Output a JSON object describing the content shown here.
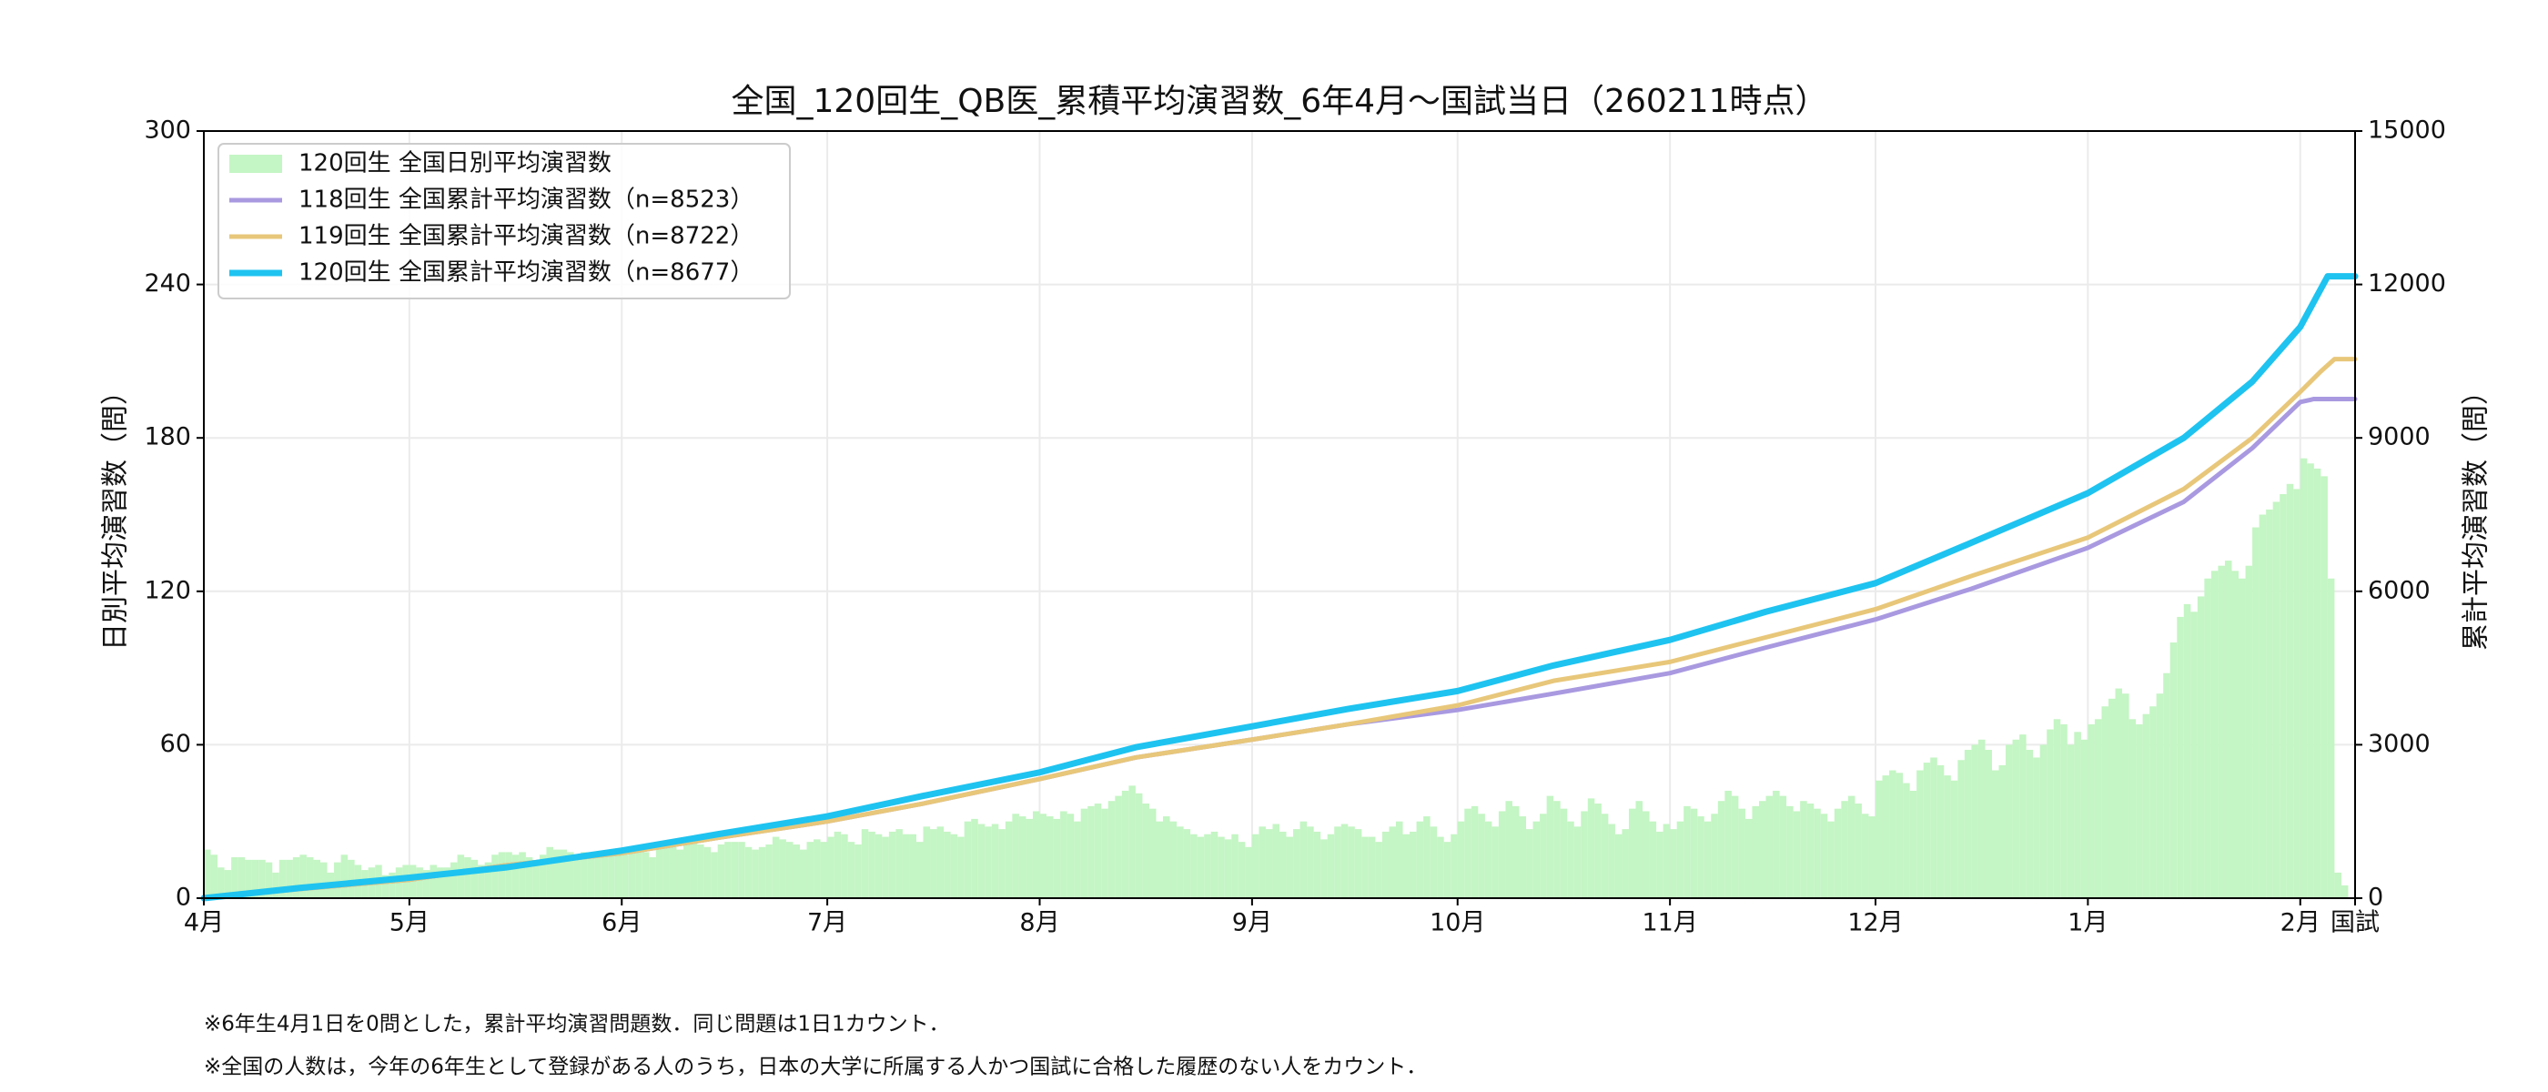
{
  "chart_data": {
    "type": "combo",
    "title": "全国_120回生_QB医_累積平均演習数_6年4月～国試当日（260211時点）",
    "y_label": "日別平均演習数（問）",
    "y2_label": "累計平均演習数（問）",
    "notes": [
      "※6年生4月1日を0問とした，累計平均演習問題数．同じ問題は1日1カウント．",
      "※全国の人数は，今年の6年生として登録がある人のうち，日本の大学に所属する人かつ国試に合格した履歴のない人をカウント．"
    ],
    "xlim": [
      0,
      314
    ],
    "xticks": [
      {
        "value": 0,
        "label": "4月"
      },
      {
        "value": 30,
        "label": "5月"
      },
      {
        "value": 61,
        "label": "6月"
      },
      {
        "value": 91,
        "label": "7月"
      },
      {
        "value": 122,
        "label": "8月"
      },
      {
        "value": 153,
        "label": "9月"
      },
      {
        "value": 183,
        "label": "10月"
      },
      {
        "value": 214,
        "label": "11月"
      },
      {
        "value": 244,
        "label": "12月"
      },
      {
        "value": 275,
        "label": "1月"
      },
      {
        "value": 306,
        "label": "2月"
      },
      {
        "value": 314,
        "label": "国試"
      }
    ],
    "ylim": [
      0,
      300
    ],
    "yticks": [
      0,
      60,
      120,
      180,
      240,
      300
    ],
    "y2lim": [
      0,
      15000
    ],
    "y2ticks": [
      0,
      3000,
      6000,
      9000,
      12000,
      15000
    ],
    "grid": true,
    "legend": "upper left",
    "series": [
      {
        "name": "120回生 全国日別平均演習数",
        "type": "bar",
        "color": "#c4f5c4",
        "x": [
          0,
          1,
          2,
          3,
          4,
          5,
          6,
          7,
          8,
          9,
          10,
          11,
          12,
          13,
          14,
          15,
          16,
          17,
          18,
          19,
          20,
          21,
          22,
          23,
          24,
          25,
          26,
          27,
          28,
          29,
          30,
          31,
          32,
          33,
          34,
          35,
          36,
          37,
          38,
          39,
          40,
          41,
          42,
          43,
          44,
          45,
          46,
          47,
          48,
          49,
          50,
          51,
          52,
          53,
          54,
          55,
          56,
          57,
          58,
          59,
          60,
          61,
          62,
          63,
          64,
          65,
          66,
          67,
          68,
          69,
          70,
          71,
          72,
          73,
          74,
          75,
          76,
          77,
          78,
          79,
          80,
          81,
          82,
          83,
          84,
          85,
          86,
          87,
          88,
          89,
          90,
          91,
          92,
          93,
          94,
          95,
          96,
          97,
          98,
          99,
          100,
          101,
          102,
          103,
          104,
          105,
          106,
          107,
          108,
          109,
          110,
          111,
          112,
          113,
          114,
          115,
          116,
          117,
          118,
          119,
          120,
          121,
          122,
          123,
          124,
          125,
          126,
          127,
          128,
          129,
          130,
          131,
          132,
          133,
          134,
          135,
          136,
          137,
          138,
          139,
          140,
          141,
          142,
          143,
          144,
          145,
          146,
          147,
          148,
          149,
          150,
          151,
          152,
          153,
          154,
          155,
          156,
          157,
          158,
          159,
          160,
          161,
          162,
          163,
          164,
          165,
          166,
          167,
          168,
          169,
          170,
          171,
          172,
          173,
          174,
          175,
          176,
          177,
          178,
          179,
          180,
          181,
          182,
          183,
          184,
          185,
          186,
          187,
          188,
          189,
          190,
          191,
          192,
          193,
          194,
          195,
          196,
          197,
          198,
          199,
          200,
          201,
          202,
          203,
          204,
          205,
          206,
          207,
          208,
          209,
          210,
          211,
          212,
          213,
          214,
          215,
          216,
          217,
          218,
          219,
          220,
          221,
          222,
          223,
          224,
          225,
          226,
          227,
          228,
          229,
          230,
          231,
          232,
          233,
          234,
          235,
          236,
          237,
          238,
          239,
          240,
          241,
          242,
          243,
          244,
          245,
          246,
          247,
          248,
          249,
          250,
          251,
          252,
          253,
          254,
          255,
          256,
          257,
          258,
          259,
          260,
          261,
          262,
          263,
          264,
          265,
          266,
          267,
          268,
          269,
          270,
          271,
          272,
          273,
          274,
          275,
          276,
          277,
          278,
          279,
          280,
          281,
          282,
          283,
          284,
          285,
          286,
          287,
          288,
          289,
          290,
          291,
          292,
          293,
          294,
          295,
          296,
          297,
          298,
          299,
          300,
          301,
          302,
          303,
          304,
          305,
          306,
          307,
          308,
          309,
          310,
          311,
          312
        ],
        "values": [
          19,
          17,
          12,
          11,
          16,
          16,
          15,
          15,
          15,
          14,
          10,
          15,
          15,
          16,
          17,
          16,
          15,
          14,
          10,
          14,
          17,
          15,
          13,
          11,
          12,
          13,
          9,
          10,
          12,
          13,
          13,
          12,
          11,
          13,
          12,
          12,
          14,
          17,
          16,
          15,
          13,
          14,
          17,
          18,
          18,
          17,
          18,
          16,
          14,
          17,
          20,
          19,
          19,
          18,
          17,
          18,
          16,
          16,
          18,
          19,
          18,
          17,
          20,
          19,
          18,
          16,
          22,
          20,
          20,
          19,
          21,
          22,
          21,
          20,
          18,
          21,
          22,
          22,
          22,
          20,
          19,
          20,
          21,
          24,
          23,
          22,
          21,
          19,
          22,
          23,
          22,
          24,
          26,
          25,
          22,
          21,
          27,
          26,
          25,
          24,
          26,
          27,
          25,
          25,
          22,
          28,
          27,
          28,
          26,
          25,
          24,
          30,
          31,
          29,
          28,
          29,
          27,
          30,
          33,
          32,
          31,
          34,
          33,
          32,
          31,
          34,
          33,
          30,
          35,
          36,
          37,
          35,
          38,
          40,
          42,
          44,
          41,
          37,
          35,
          30,
          32,
          30,
          28,
          27,
          25,
          24,
          25,
          26,
          24,
          23,
          25,
          22,
          20,
          25,
          28,
          27,
          29,
          26,
          24,
          27,
          30,
          28,
          26,
          23,
          25,
          28,
          29,
          28,
          27,
          24,
          24,
          22,
          26,
          28,
          30,
          25,
          26,
          30,
          32,
          28,
          24,
          22,
          25,
          30,
          35,
          36,
          33,
          30,
          28,
          34,
          38,
          36,
          32,
          27,
          30,
          33,
          40,
          38,
          35,
          30,
          28,
          34,
          39,
          37,
          33,
          29,
          25,
          27,
          35,
          38,
          34,
          30,
          26,
          29,
          27,
          30,
          36,
          35,
          32,
          30,
          33,
          38,
          42,
          40,
          35,
          31,
          36,
          38,
          40,
          42,
          40,
          36,
          34,
          38,
          37,
          35,
          33,
          30,
          35,
          38,
          40,
          37,
          33,
          32,
          46,
          48,
          50,
          49,
          45,
          42,
          50,
          53,
          55,
          52,
          48,
          46,
          54,
          58,
          60,
          62,
          58,
          50,
          52,
          60,
          62,
          64,
          58,
          55,
          60,
          66,
          70,
          68,
          60,
          65,
          62,
          68,
          70,
          75,
          78,
          82,
          80,
          70,
          68,
          72,
          75,
          80,
          88,
          100,
          110,
          115,
          112,
          118,
          125,
          128,
          130,
          132,
          128,
          125,
          130,
          145,
          150,
          152,
          155,
          158,
          162,
          160,
          172,
          170,
          168,
          165,
          125,
          10,
          5
        ]
      },
      {
        "name": "118回生 全国累計平均演習数（n=8523）",
        "type": "line",
        "axis": "y2",
        "color": "#a999e0",
        "x": [
          0,
          14,
          30,
          44,
          61,
          75,
          91,
          105,
          122,
          136,
          153,
          167,
          183,
          197,
          214,
          228,
          244,
          258,
          275,
          289,
          299,
          306,
          308,
          314
        ],
        "values": [
          0,
          180,
          360,
          640,
          880,
          1180,
          1500,
          1850,
          2330,
          2750,
          3100,
          3400,
          3680,
          4000,
          4400,
          4900,
          5450,
          6050,
          6850,
          7750,
          8800,
          9700,
          9760,
          9760
        ]
      },
      {
        "name": "119回生 全国累計平均演習数（n=8722）",
        "type": "line",
        "axis": "y2",
        "color": "#e8c77a",
        "x": [
          0,
          14,
          30,
          44,
          61,
          75,
          91,
          105,
          122,
          136,
          153,
          167,
          183,
          197,
          214,
          228,
          244,
          258,
          275,
          289,
          299,
          306,
          309,
          311,
          314
        ],
        "values": [
          0,
          180,
          360,
          640,
          880,
          1180,
          1500,
          1850,
          2330,
          2750,
          3100,
          3400,
          3770,
          4250,
          4620,
          5100,
          5650,
          6300,
          7050,
          8000,
          9000,
          9900,
          10300,
          10540,
          10540
        ]
      },
      {
        "name": "120回生 全国累計平均演習数（n=8677）",
        "type": "line",
        "axis": "y2",
        "color": "#1ec3f0",
        "x": [
          0,
          14,
          30,
          44,
          61,
          75,
          91,
          105,
          122,
          136,
          153,
          167,
          183,
          197,
          214,
          228,
          244,
          258,
          275,
          289,
          299,
          306,
          310,
          314
        ],
        "values": [
          0,
          200,
          400,
          600,
          930,
          1250,
          1600,
          2000,
          2460,
          2950,
          3360,
          3700,
          4050,
          4550,
          5050,
          5600,
          6160,
          6950,
          7920,
          9000,
          10100,
          11170,
          12160,
          12160
        ]
      }
    ]
  }
}
